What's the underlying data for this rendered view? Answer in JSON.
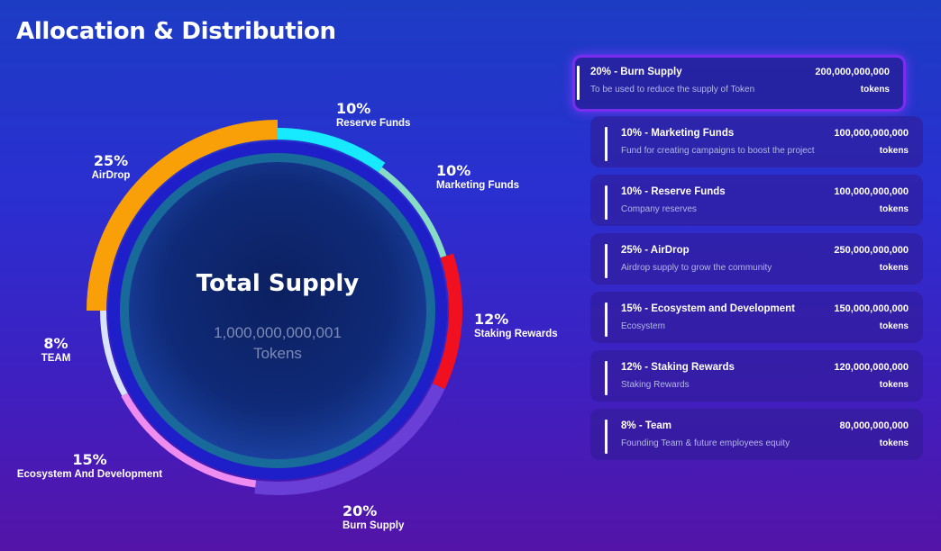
{
  "page": {
    "title": "Allocation & Distribution"
  },
  "center": {
    "title": "Total Supply",
    "amount": "1,000,000,000,001",
    "unit": "Tokens"
  },
  "chart_data": {
    "type": "pie",
    "title": "Allocation & Distribution",
    "categories": [
      "Reserve Funds",
      "Marketing Funds",
      "Staking Rewards",
      "Burn Supply",
      "Ecosystem And Development",
      "TEAM",
      "AirDrop"
    ],
    "values": [
      10,
      10,
      12,
      20,
      15,
      8,
      25
    ],
    "colors": [
      "#17e9ff",
      "#86dcc4",
      "#f1101f",
      "#6a3fd8",
      "#ef8cef",
      "#d7e4fa",
      "#f9a008"
    ],
    "labels": [
      {
        "pct": "10%",
        "name": "Reserve Funds"
      },
      {
        "pct": "10%",
        "name": "Marketing Funds"
      },
      {
        "pct": "12%",
        "name": "Staking Rewards"
      },
      {
        "pct": "20%",
        "name": "Burn Supply"
      },
      {
        "pct": "15%",
        "name": "Ecosystem And Development"
      },
      {
        "pct": "8%",
        "name": "TEAM"
      },
      {
        "pct": "25%",
        "name": "AirDrop"
      }
    ]
  },
  "cards": [
    {
      "title": "20% - Burn Supply",
      "desc": "To be used to reduce the supply of Token",
      "amount": "200,000,000,000",
      "unit": "tokens",
      "active": true
    },
    {
      "title": "10% - Marketing Funds",
      "desc": "Fund for creating campaigns to boost the project",
      "amount": "100,000,000,000",
      "unit": "tokens",
      "active": false
    },
    {
      "title": "10% - Reserve Funds",
      "desc": "Company reserves",
      "amount": "100,000,000,000",
      "unit": "tokens",
      "active": false
    },
    {
      "title": "25% - AirDrop",
      "desc": "Airdrop supply to grow the community",
      "amount": "250,000,000,000",
      "unit": "tokens",
      "active": false
    },
    {
      "title": "15% - Ecosystem and Development",
      "desc": "Ecosystem",
      "amount": "150,000,000,000",
      "unit": "tokens",
      "active": false
    },
    {
      "title": "12% - Staking Rewards",
      "desc": "Staking Rewards",
      "amount": "120,000,000,000",
      "unit": "tokens",
      "active": false
    },
    {
      "title": "8% - Team",
      "desc": "Founding Team & future employees equity",
      "amount": "80,000,000,000",
      "unit": "tokens",
      "active": false
    }
  ]
}
